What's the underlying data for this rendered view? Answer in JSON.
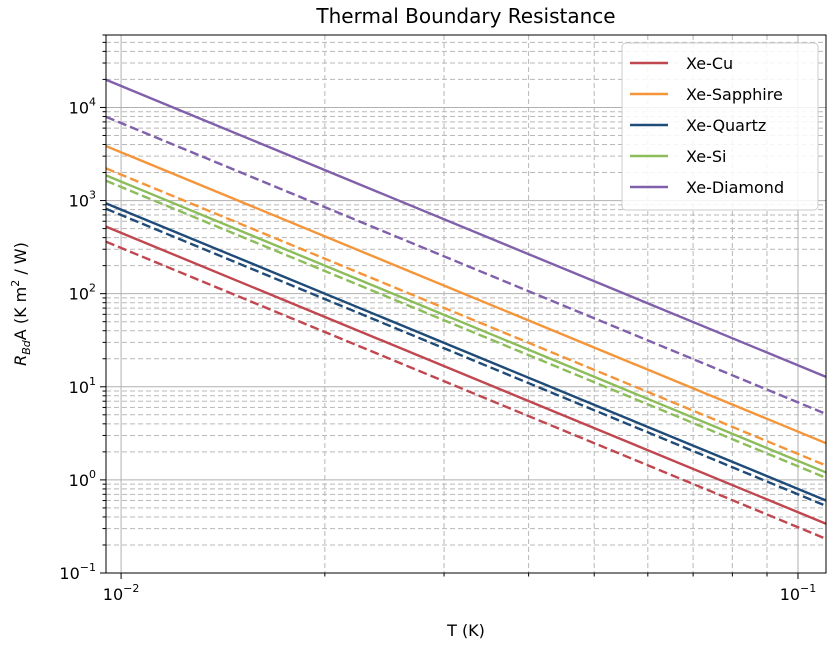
{
  "chart_data": {
    "type": "line",
    "title": "Thermal Boundary Resistance",
    "xlabel": "T (K)",
    "ylabel": {
      "main": "R",
      "sub": "Bd",
      "tail": "A (K m",
      "sup": "2",
      "end": " / W)"
    },
    "xscale": "log",
    "yscale": "log",
    "xlim": [
      0.0095,
      0.11
    ],
    "ylim": [
      0.1,
      60000
    ],
    "grid": true,
    "legend_position": "top-right",
    "x_ticks": [
      {
        "value": 0.01,
        "base": "10",
        "exp": "−2"
      },
      {
        "value": 0.1,
        "base": "10",
        "exp": "−1"
      }
    ],
    "y_ticks": [
      {
        "value": 0.1,
        "base": "10",
        "exp": "−1"
      },
      {
        "value": 1,
        "base": "10",
        "exp": "0"
      },
      {
        "value": 10,
        "base": "10",
        "exp": "1"
      },
      {
        "value": 100,
        "base": "10",
        "exp": "2"
      },
      {
        "value": 1000,
        "base": "10",
        "exp": "3"
      },
      {
        "value": 10000,
        "base": "10",
        "exp": "4"
      }
    ],
    "x_domain": [
      0.0095,
      0.11
    ],
    "series": [
      {
        "name": "Xe-Cu",
        "color": "#c0474f",
        "style": "solid",
        "y_at_0_01": 450
      },
      {
        "name": "Xe-Sapphire",
        "color": "#f5953a",
        "style": "solid",
        "y_at_0_01": 3300
      },
      {
        "name": "Xe-Quartz",
        "color": "#1f4b78",
        "style": "solid",
        "y_at_0_01": 800
      },
      {
        "name": "Xe-Si",
        "color": "#8cbd5a",
        "style": "solid",
        "y_at_0_01": 1600
      },
      {
        "name": "Xe-Diamond",
        "color": "#8060aa",
        "style": "solid",
        "y_at_0_01": 17000
      },
      {
        "color": "#c0474f",
        "style": "dashed",
        "y_at_0_01": 310
      },
      {
        "color": "#f5953a",
        "style": "dashed",
        "y_at_0_01": 1900
      },
      {
        "color": "#1f4b78",
        "style": "dashed",
        "y_at_0_01": 700
      },
      {
        "color": "#8cbd5a",
        "style": "dashed",
        "y_at_0_01": 1400
      },
      {
        "color": "#8060aa",
        "style": "dashed",
        "y_at_0_01": 6800
      }
    ],
    "slope_loglog": -3
  }
}
